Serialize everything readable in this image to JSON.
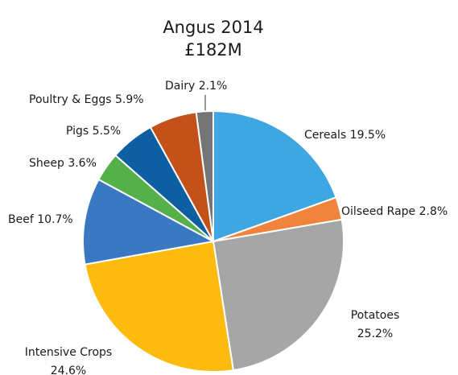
{
  "chart_data": {
    "type": "pie",
    "title": "Angus 2014",
    "subtitle": "£182M",
    "categories": [
      "Cereals",
      "Oilseed Rape",
      "Potatoes",
      "Intensive Crops",
      "Beef",
      "Sheep",
      "Pigs",
      "Poultry & Eggs",
      "Dairy"
    ],
    "values": [
      19.5,
      2.8,
      25.2,
      24.6,
      10.7,
      3.6,
      5.5,
      5.9,
      2.1
    ],
    "value_labels": [
      "19.5%",
      "2.8%",
      "25.2%",
      "24.6%",
      "10.7%",
      "3.6%",
      "5.5%",
      "5.9%",
      "2.1%"
    ],
    "colors": [
      "#3ea6e0",
      "#f0843c",
      "#a6a6a6",
      "#fdbb10",
      "#3a78c2",
      "#55b04a",
      "#0d5fa1",
      "#c4501a",
      "#757575"
    ]
  }
}
